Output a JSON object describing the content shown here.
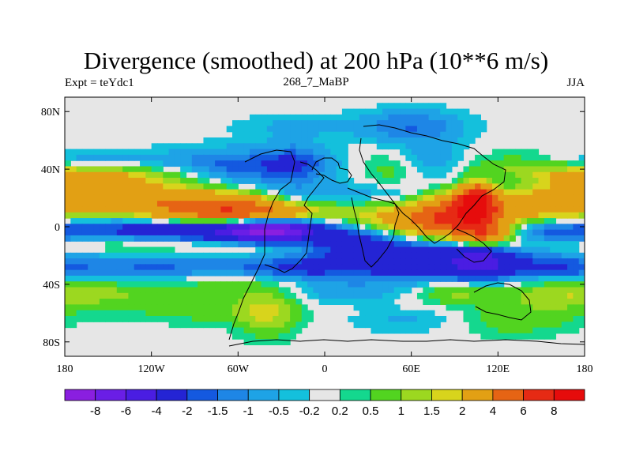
{
  "chart_data": {
    "type": "heatmap",
    "title": "Divergence (smoothed) at 200 hPa (10**6 m/s)",
    "left_string": "Expt = teYdc1",
    "center_string": "268_7_MaBP",
    "right_string": "JJA",
    "x_ticks": [
      "180",
      "120W",
      "60W",
      "0",
      "60E",
      "120E",
      "180"
    ],
    "y_ticks": [
      "80N",
      "40N",
      "0",
      "40S",
      "80S"
    ],
    "x_range": [
      -180,
      180
    ],
    "y_range": [
      -90,
      90
    ],
    "x_tick_values": [
      -180,
      -120,
      -60,
      0,
      60,
      120,
      180
    ],
    "y_tick_values": [
      80,
      40,
      0,
      -40,
      -80
    ],
    "colorbar_labels": [
      "-8",
      "-6",
      "-4",
      "-2",
      "-1.5",
      "-1",
      "-0.5",
      "-0.2",
      "0.2",
      "0.5",
      "1",
      "1.5",
      "2",
      "4",
      "6",
      "8"
    ],
    "colorbar_colors": [
      "#8a1fe0",
      "#6a1ee6",
      "#4a1de2",
      "#2424d4",
      "#1459e0",
      "#1e86e6",
      "#1ea3e6",
      "#14c0dc",
      "#e6e6e6",
      "#14d88e",
      "#52d420",
      "#9cd820",
      "#d8d41c",
      "#e2a014",
      "#e66414",
      "#e62a14",
      "#e60c0c"
    ],
    "field_blobs": [
      {
        "cx": -110,
        "cy": 18,
        "rx": 70,
        "ry": 8,
        "v": 3.5
      },
      {
        "cx": -60,
        "cy": 10,
        "rx": 35,
        "ry": 6,
        "v": 4.5
      },
      {
        "cx": -120,
        "cy": 35,
        "rx": 60,
        "ry": 6,
        "v": 1.8
      },
      {
        "cx": -170,
        "cy": 32,
        "rx": 25,
        "ry": 6,
        "v": 1.5
      },
      {
        "cx": -60,
        "cy": 38,
        "rx": 40,
        "ry": 10,
        "v": -2.5
      },
      {
        "cx": -165,
        "cy": 46,
        "rx": 30,
        "ry": 5,
        "v": -1.0
      },
      {
        "cx": -20,
        "cy": 45,
        "rx": 15,
        "ry": 10,
        "v": -1.2
      },
      {
        "cx": -90,
        "cy": -3,
        "rx": 90,
        "ry": 6,
        "v": -3.5
      },
      {
        "cx": -40,
        "cy": -3,
        "rx": 20,
        "ry": 5,
        "v": -7.0
      },
      {
        "cx": -150,
        "cy": -10,
        "rx": 40,
        "ry": 6,
        "v": 1.2
      },
      {
        "cx": -50,
        "cy": -12,
        "rx": 50,
        "ry": 6,
        "v": 1.0
      },
      {
        "cx": -20,
        "cy": 20,
        "rx": 20,
        "ry": 6,
        "v": -1.5
      },
      {
        "cx": 30,
        "cy": 22,
        "rx": 30,
        "ry": 6,
        "v": -1.0
      },
      {
        "cx": 70,
        "cy": 2,
        "rx": 35,
        "ry": 9,
        "v": 4.0
      },
      {
        "cx": 95,
        "cy": 10,
        "rx": 20,
        "ry": 10,
        "v": 4.5
      },
      {
        "cx": 105,
        "cy": 18,
        "rx": 8,
        "ry": 8,
        "v": 7.0
      },
      {
        "cx": 150,
        "cy": 15,
        "rx": 30,
        "ry": 8,
        "v": 2.0
      },
      {
        "cx": 65,
        "cy": -22,
        "rx": 55,
        "ry": 10,
        "v": -3.5
      },
      {
        "cx": 20,
        "cy": -10,
        "rx": 25,
        "ry": 6,
        "v": -1.5
      },
      {
        "cx": 108,
        "cy": -25,
        "rx": 12,
        "ry": 8,
        "v": -2.5
      },
      {
        "cx": 110,
        "cy": -5,
        "rx": 12,
        "ry": 6,
        "v": 4.0
      },
      {
        "cx": 140,
        "cy": -10,
        "rx": 25,
        "ry": 6,
        "v": 0.8
      },
      {
        "cx": 160,
        "cy": -5,
        "rx": 20,
        "ry": 5,
        "v": -1.0
      },
      {
        "cx": -150,
        "cy": -30,
        "rx": 50,
        "ry": 8,
        "v": -0.8
      },
      {
        "cx": -90,
        "cy": -28,
        "rx": 50,
        "ry": 6,
        "v": -1.2
      },
      {
        "cx": -150,
        "cy": -45,
        "rx": 50,
        "ry": 8,
        "v": 1.0
      },
      {
        "cx": -60,
        "cy": -40,
        "rx": 40,
        "ry": 8,
        "v": 0.6
      },
      {
        "cx": -80,
        "cy": -60,
        "rx": 40,
        "ry": 6,
        "v": 0.6
      },
      {
        "cx": -40,
        "cy": -60,
        "rx": 15,
        "ry": 12,
        "v": 1.4
      },
      {
        "cx": -20,
        "cy": -30,
        "rx": 25,
        "ry": 5,
        "v": -1.2
      },
      {
        "cx": 10,
        "cy": -45,
        "rx": 30,
        "ry": 6,
        "v": -0.8
      },
      {
        "cx": 90,
        "cy": -45,
        "rx": 20,
        "ry": 6,
        "v": 1.2
      },
      {
        "cx": 140,
        "cy": -30,
        "rx": 40,
        "ry": 8,
        "v": -0.8
      },
      {
        "cx": 160,
        "cy": -45,
        "rx": 30,
        "ry": 10,
        "v": 1.0
      },
      {
        "cx": 170,
        "cy": -30,
        "rx": 15,
        "ry": 4,
        "v": -0.6
      },
      {
        "cx": 130,
        "cy": -65,
        "rx": 30,
        "ry": 8,
        "v": 0.8
      },
      {
        "cx": 60,
        "cy": -65,
        "rx": 30,
        "ry": 6,
        "v": -0.6
      },
      {
        "cx": 60,
        "cy": 70,
        "rx": 25,
        "ry": 8,
        "v": -1.5
      },
      {
        "cx": 45,
        "cy": 40,
        "rx": 15,
        "ry": 8,
        "v": 0.8
      },
      {
        "cx": 75,
        "cy": 45,
        "rx": 18,
        "ry": 10,
        "v": -1.0
      },
      {
        "cx": 140,
        "cy": 40,
        "rx": 40,
        "ry": 8,
        "v": 1.0
      },
      {
        "cx": -20,
        "cy": 70,
        "rx": 30,
        "ry": 6,
        "v": -0.6
      },
      {
        "cx": 120,
        "cy": 30,
        "rx": 25,
        "ry": 6,
        "v": -0.7
      }
    ]
  }
}
